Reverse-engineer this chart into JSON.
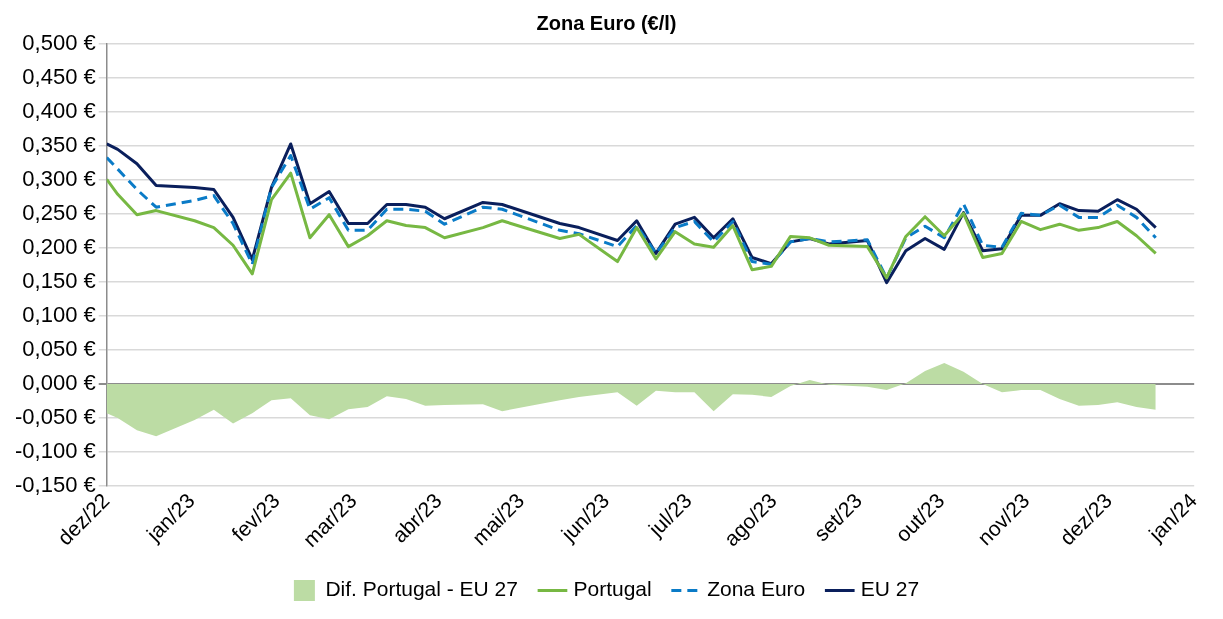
{
  "chart_data": {
    "type": "line",
    "title": "Zona Euro (€/l)",
    "x": [
      "2022-12-01",
      "2022-12-05",
      "2022-12-12",
      "2022-12-19",
      "2023-01-02",
      "2023-01-09",
      "2023-01-16",
      "2023-01-23",
      "2023-01-30",
      "2023-02-06",
      "2023-02-13",
      "2023-02-20",
      "2023-02-27",
      "2023-03-06",
      "2023-03-13",
      "2023-03-20",
      "2023-03-27",
      "2023-04-03",
      "2023-04-17",
      "2023-04-24",
      "2023-05-15",
      "2023-05-22",
      "2023-06-05",
      "2023-06-12",
      "2023-06-19",
      "2023-06-26",
      "2023-07-03",
      "2023-07-10",
      "2023-07-17",
      "2023-07-24",
      "2023-07-31",
      "2023-08-07",
      "2023-08-14",
      "2023-08-21",
      "2023-09-04",
      "2023-09-11",
      "2023-09-18",
      "2023-09-25",
      "2023-10-02",
      "2023-10-09",
      "2023-10-16",
      "2023-10-23",
      "2023-10-30",
      "2023-11-06",
      "2023-11-13",
      "2023-11-20",
      "2023-11-27",
      "2023-12-04",
      "2023-12-11",
      "2023-12-18"
    ],
    "series": [
      {
        "name": "Dif. Portugal - EU 27",
        "type": "area",
        "color": "#bcdca4",
        "values": [
          -0.043,
          -0.05,
          -0.068,
          -0.077,
          -0.053,
          -0.038,
          -0.058,
          -0.043,
          -0.024,
          -0.021,
          -0.046,
          -0.052,
          -0.037,
          -0.034,
          -0.018,
          -0.022,
          -0.032,
          -0.031,
          -0.03,
          -0.04,
          -0.024,
          -0.019,
          -0.012,
          -0.032,
          -0.01,
          -0.012,
          -0.012,
          -0.04,
          -0.015,
          -0.016,
          -0.019,
          -0.003,
          0.006,
          -0.001,
          -0.004,
          -0.009,
          0.001,
          0.019,
          0.031,
          0.018,
          0,
          -0.012,
          -0.009,
          -0.009,
          -0.022,
          -0.032,
          -0.031,
          -0.027,
          -0.034,
          -0.038
        ]
      },
      {
        "name": "Portugal",
        "color": "#77b843",
        "line_style": "solid",
        "values": [
          0.301,
          0.279,
          0.249,
          0.255,
          0.24,
          0.23,
          0.204,
          0.162,
          0.271,
          0.31,
          0.215,
          0.249,
          0.202,
          0.218,
          0.24,
          0.233,
          0.23,
          0.215,
          0.23,
          0.24,
          0.214,
          0.22,
          0.18,
          0.23,
          0.184,
          0.224,
          0.206,
          0.201,
          0.233,
          0.168,
          0.173,
          0.217,
          0.215,
          0.204,
          0.202,
          0.156,
          0.217,
          0.246,
          0.218,
          0.251,
          0.186,
          0.192,
          0.239,
          0.227,
          0.235,
          0.226,
          0.23,
          0.239,
          0.218,
          0.192
        ]
      },
      {
        "name": "Zona Euro",
        "color": "#0a7bc7",
        "line_style": "dashed",
        "values": [
          0.333,
          0.316,
          0.286,
          0.26,
          0.27,
          0.277,
          0.236,
          0.176,
          0.289,
          0.336,
          0.257,
          0.274,
          0.226,
          0.226,
          0.257,
          0.257,
          0.254,
          0.235,
          0.26,
          0.257,
          0.226,
          0.221,
          0.202,
          0.233,
          0.192,
          0.23,
          0.239,
          0.209,
          0.239,
          0.18,
          0.176,
          0.209,
          0.214,
          0.209,
          0.212,
          0.156,
          0.215,
          0.232,
          0.215,
          0.265,
          0.204,
          0.201,
          0.251,
          0.248,
          0.263,
          0.245,
          0.245,
          0.263,
          0.245,
          0.215
        ]
      },
      {
        "name": "EU 27",
        "color": "#0a1f5c",
        "line_style": "solid",
        "values": [
          0.353,
          0.345,
          0.324,
          0.292,
          0.289,
          0.286,
          0.245,
          0.183,
          0.289,
          0.353,
          0.265,
          0.283,
          0.236,
          0.236,
          0.264,
          0.264,
          0.26,
          0.243,
          0.267,
          0.264,
          0.236,
          0.23,
          0.211,
          0.24,
          0.192,
          0.235,
          0.245,
          0.215,
          0.243,
          0.186,
          0.177,
          0.209,
          0.214,
          0.206,
          0.211,
          0.149,
          0.196,
          0.214,
          0.198,
          0.252,
          0.196,
          0.199,
          0.248,
          0.248,
          0.265,
          0.255,
          0.254,
          0.271,
          0.257,
          0.23
        ]
      }
    ],
    "xlim": [
      "2022-12-01",
      "2024-01-01"
    ],
    "xticks": [
      {
        "value": "2022-12-01",
        "label": "dez/22"
      },
      {
        "value": "2023-01-01",
        "label": "jan/23"
      },
      {
        "value": "2023-02-01",
        "label": "fev/23"
      },
      {
        "value": "2023-03-01",
        "label": "mar/23"
      },
      {
        "value": "2023-04-01",
        "label": "abr/23"
      },
      {
        "value": "2023-05-01",
        "label": "mai/23"
      },
      {
        "value": "2023-06-01",
        "label": "jun/23"
      },
      {
        "value": "2023-07-01",
        "label": "jul/23"
      },
      {
        "value": "2023-08-01",
        "label": "ago/23"
      },
      {
        "value": "2023-09-01",
        "label": "set/23"
      },
      {
        "value": "2023-10-01",
        "label": "out/23"
      },
      {
        "value": "2023-11-01",
        "label": "nov/23"
      },
      {
        "value": "2023-12-01",
        "label": "dez/23"
      },
      {
        "value": "2024-01-01",
        "label": "jan/24"
      }
    ],
    "ylim": [
      -0.15,
      0.5
    ],
    "yticks": [
      {
        "value": -0.15,
        "label": "-0,150 €"
      },
      {
        "value": -0.1,
        "label": "-0,100 €"
      },
      {
        "value": -0.05,
        "label": "-0,050 €"
      },
      {
        "value": 0,
        "label": "0,000 €"
      },
      {
        "value": 0.05,
        "label": "0,050 €"
      },
      {
        "value": 0.1,
        "label": "0,100 €"
      },
      {
        "value": 0.15,
        "label": "0,150 €"
      },
      {
        "value": 0.2,
        "label": "0,200 €"
      },
      {
        "value": 0.25,
        "label": "0,250 €"
      },
      {
        "value": 0.3,
        "label": "0,300 €"
      },
      {
        "value": 0.35,
        "label": "0,350 €"
      },
      {
        "value": 0.4,
        "label": "0,400 €"
      },
      {
        "value": 0.45,
        "label": "0,450 €"
      },
      {
        "value": 0.5,
        "label": "0,500 €"
      }
    ],
    "grid": "y",
    "legend": "bottom"
  }
}
